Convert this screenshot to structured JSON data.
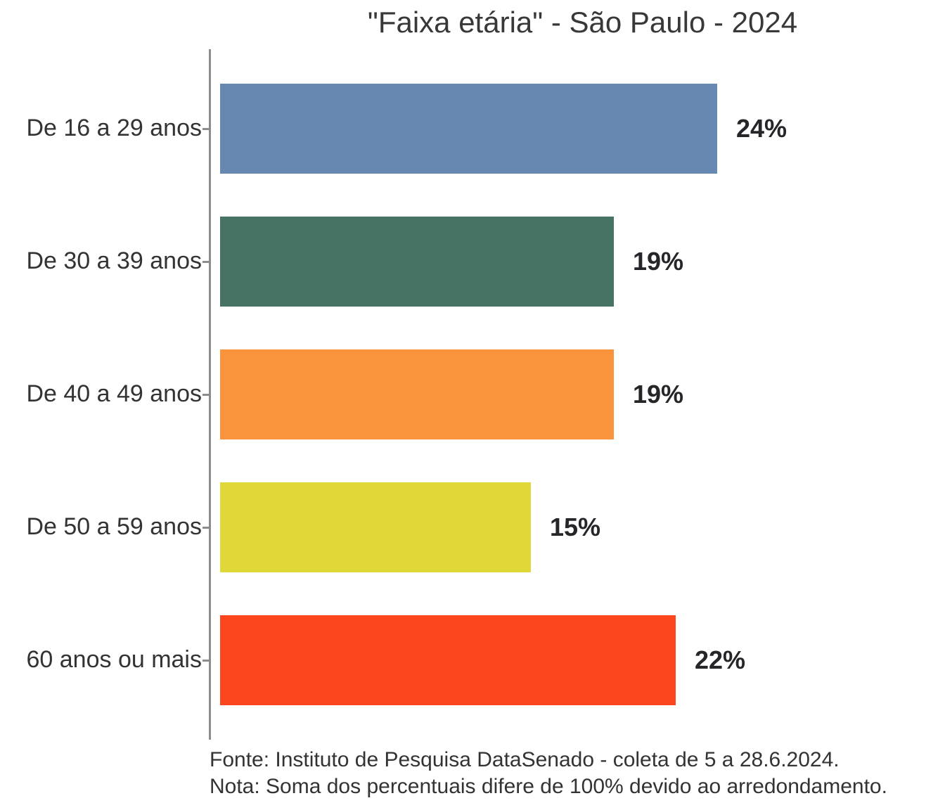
{
  "title": "\"Faixa etária\" - São Paulo - 2024",
  "chart_data": {
    "type": "bar",
    "orientation": "horizontal",
    "title": "\"Faixa etária\" - São Paulo - 2024",
    "categories": [
      "De 16 a 29 anos",
      "De 30 a 39 anos",
      "De 40 a 49 anos",
      "De 50 a 59 anos",
      "60 anos ou mais"
    ],
    "values": [
      24,
      19,
      19,
      15,
      22
    ],
    "value_labels": [
      "24%",
      "19%",
      "19%",
      "15%",
      "22%"
    ],
    "colors": [
      "#6789b1",
      "#467363",
      "#f9943c",
      "#e0d838",
      "#fc471e"
    ],
    "xlabel": "",
    "ylabel": "",
    "xlim": [
      0,
      35
    ],
    "grid": false,
    "legend": "none",
    "bar_labels": true,
    "axis_color": "#8c8c8c"
  },
  "footer": {
    "source": "Fonte: Instituto de Pesquisa DataSenado - coleta de 5 a 28.6.2024.",
    "note": "Nota: Soma dos percentuais difere de 100% devido ao arredondamento."
  }
}
